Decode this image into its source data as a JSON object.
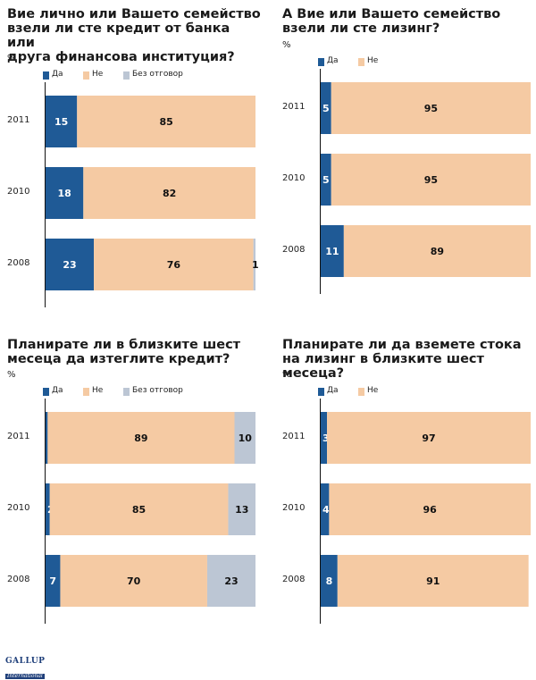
{
  "colors": {
    "yes": "#1f5a96",
    "no": "#f5caa3",
    "na": "#bcc6d4"
  },
  "unit_label": "%",
  "logo": {
    "line1": "GALLUP",
    "line2": "International"
  },
  "chart_data": [
    {
      "type": "bar",
      "orientation": "horizontal",
      "stacked": true,
      "title": "Вие лично или Вашето семейство\nвзели ли сте кредит от банка или\nдруга финансова институция?",
      "unit": "%",
      "categories": [
        "2011",
        "2010",
        "2008"
      ],
      "series": [
        {
          "name": "Да",
          "values": [
            15,
            18,
            23
          ]
        },
        {
          "name": "Не",
          "values": [
            85,
            82,
            76
          ]
        },
        {
          "name": "Без отговор",
          "values": [
            null,
            null,
            1
          ]
        }
      ],
      "xlim": [
        0,
        100
      ]
    },
    {
      "type": "bar",
      "orientation": "horizontal",
      "stacked": true,
      "title": "А Вие или Вашето семейство\nвзели ли сте лизинг?",
      "unit": "%",
      "categories": [
        "2011",
        "2010",
        "2008"
      ],
      "series": [
        {
          "name": "Да",
          "values": [
            5,
            5,
            11
          ]
        },
        {
          "name": "Не",
          "values": [
            95,
            95,
            89
          ]
        }
      ],
      "xlim": [
        0,
        100
      ]
    },
    {
      "type": "bar",
      "orientation": "horizontal",
      "stacked": true,
      "title": "Планирате ли в близките шест\nмесеца да изтеглите кредит?",
      "unit": "%",
      "categories": [
        "2011",
        "2010",
        "2008"
      ],
      "series": [
        {
          "name": "Да",
          "values": [
            1,
            2,
            7
          ]
        },
        {
          "name": "Не",
          "values": [
            89,
            85,
            70
          ]
        },
        {
          "name": "Без отговор",
          "values": [
            10,
            13,
            23
          ]
        }
      ],
      "xlim": [
        0,
        100
      ]
    },
    {
      "type": "bar",
      "orientation": "horizontal",
      "stacked": true,
      "title": "Планирате ли да вземете стока\nна лизинг в близките шест месеца?",
      "unit": "%",
      "categories": [
        "2011",
        "2010",
        "2008"
      ],
      "series": [
        {
          "name": "Да",
          "values": [
            3,
            4,
            8
          ]
        },
        {
          "name": "Не",
          "values": [
            97,
            96,
            91
          ]
        }
      ],
      "xlim": [
        0,
        100
      ]
    }
  ]
}
